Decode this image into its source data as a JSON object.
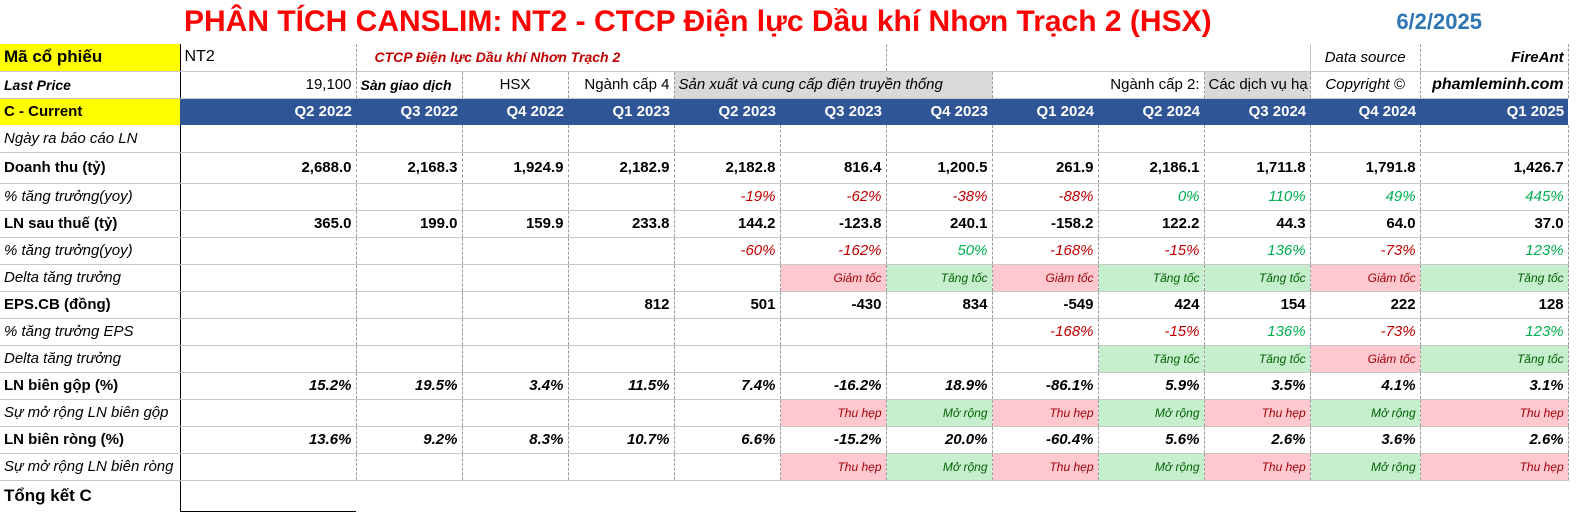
{
  "title": "PHÂN TÍCH CANSLIM: NT2 - CTCP Điện lực Dầu khí Nhơn Trạch 2 (HSX)",
  "date": "6/2/2025",
  "info": {
    "ticker_label": "Mã cổ phiếu",
    "ticker": "NT2",
    "company": "CTCP Điện lực Dầu khí Nhơn Trạch 2",
    "source_label": "Data source",
    "source": "FireAnt",
    "last_price_label": "Last Price",
    "last_price": "19,100",
    "exchange_label": "Sàn giao dịch",
    "exchange": "HSX",
    "industry4_label": "Ngành cấp 4",
    "industry4": "Sản xuất và cung cấp điện truyền thống",
    "industry2_label": "Ngành cấp 2:",
    "industry2": "Các dịch vụ hạ",
    "copyright_label": "Copyright ©",
    "copyright": "phamleminh.com"
  },
  "header": {
    "label": "C - Current",
    "quarters": [
      "Q2 2022",
      "Q3 2022",
      "Q4 2022",
      "Q1 2023",
      "Q2 2023",
      "Q3 2023",
      "Q4 2023",
      "Q1 2024",
      "Q2 2024",
      "Q3 2024",
      "Q4 2024",
      "Q1 2025"
    ]
  },
  "rows": {
    "report_date": {
      "label": "Ngày ra báo cáo LN"
    },
    "revenue": {
      "label": "Doanh thu (tỷ)",
      "values": [
        "2,688.0",
        "2,168.3",
        "1,924.9",
        "2,182.9",
        "2,182.8",
        "816.4",
        "1,200.5",
        "261.9",
        "2,186.1",
        "1,711.8",
        "1,791.8",
        "1,426.7"
      ]
    },
    "revenue_growth": {
      "label": "% tăng trưởng(yoy)",
      "values": [
        "",
        "",
        "",
        "",
        "-19%",
        "-62%",
        "-38%",
        "-88%",
        "0%",
        "110%",
        "49%",
        "445%"
      ]
    },
    "profit": {
      "label": "LN sau thuế (tỷ)",
      "values": [
        "365.0",
        "199.0",
        "159.9",
        "233.8",
        "144.2",
        "-123.8",
        "240.1",
        "-158.2",
        "122.2",
        "44.3",
        "64.0",
        "37.0"
      ]
    },
    "profit_growth": {
      "label": "% tăng trưởng(yoy)",
      "values": [
        "",
        "",
        "",
        "",
        "-60%",
        "-162%",
        "50%",
        "-168%",
        "-15%",
        "136%",
        "-73%",
        "123%"
      ]
    },
    "profit_delta": {
      "label": "Delta tăng trưởng",
      "values": [
        "",
        "",
        "",
        "",
        "",
        "Giảm tốc",
        "Tăng tốc",
        "Giảm tốc",
        "Tăng tốc",
        "Tăng tốc",
        "Giảm tốc",
        "Tăng tốc"
      ]
    },
    "eps": {
      "label": "EPS.CB (đồng)",
      "values": [
        "",
        "",
        "",
        "812",
        "501",
        "-430",
        "834",
        "-549",
        "424",
        "154",
        "222",
        "128"
      ]
    },
    "eps_growth": {
      "label": "% tăng trưởng EPS",
      "values": [
        "",
        "",
        "",
        "",
        "",
        "",
        "",
        "-168%",
        "-15%",
        "136%",
        "-73%",
        "123%"
      ]
    },
    "eps_delta": {
      "label": "Delta tăng trưởng",
      "values": [
        "",
        "",
        "",
        "",
        "",
        "",
        "",
        "",
        "Tăng tốc",
        "Tăng tốc",
        "Giảm tốc",
        "Tăng tốc"
      ]
    },
    "gross_margin": {
      "label": "LN biên gộp (%)",
      "values": [
        "15.2%",
        "19.5%",
        "3.4%",
        "11.5%",
        "7.4%",
        "-16.2%",
        "18.9%",
        "-86.1%",
        "5.9%",
        "3.5%",
        "4.1%",
        "3.1%"
      ]
    },
    "gross_margin_change": {
      "label": "Sự mở rộng LN biên gộp",
      "values": [
        "",
        "",
        "",
        "",
        "",
        "Thu hẹp",
        "Mở rộng",
        "Thu hẹp",
        "Mở rộng",
        "Thu hẹp",
        "Mở rộng",
        "Thu hẹp"
      ]
    },
    "net_margin": {
      "label": "LN biên ròng (%)",
      "values": [
        "13.6%",
        "9.2%",
        "8.3%",
        "10.7%",
        "6.6%",
        "-15.2%",
        "20.0%",
        "-60.4%",
        "5.6%",
        "2.6%",
        "3.6%",
        "2.6%"
      ]
    },
    "net_margin_change": {
      "label": "Sự mở rộng LN biên ròng",
      "values": [
        "",
        "",
        "",
        "",
        "",
        "Thu hẹp",
        "Mở rộng",
        "Thu hẹp",
        "Mở rộng",
        "Thu hẹp",
        "Mở rộng",
        "Thu hẹp"
      ]
    },
    "summary": {
      "label": "Tổng kết C"
    }
  },
  "colors": {
    "title": "#ff0000",
    "date": "#2f75b5",
    "header": "#2f5597",
    "negative": "#c00000",
    "positive": "#00b050",
    "slow_bg": "#ffc7ce",
    "fast_bg": "#c6efce"
  }
}
